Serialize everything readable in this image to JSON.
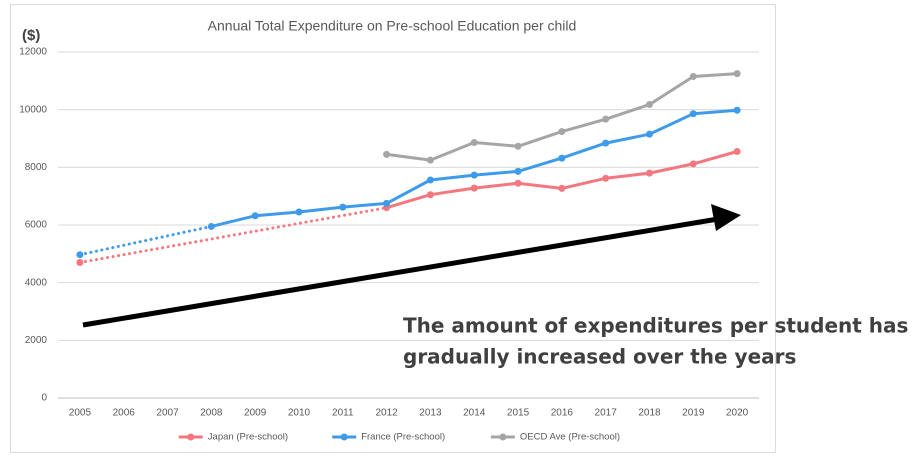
{
  "chart_data": {
    "type": "line",
    "title": "Annual Total Expenditure on Pre-school Education per child",
    "y_label": "($)",
    "categories": [
      "2005",
      "2006",
      "2007",
      "2008",
      "2009",
      "2010",
      "2011",
      "2012",
      "2013",
      "2014",
      "2015",
      "2016",
      "2017",
      "2018",
      "2019",
      "2020"
    ],
    "series": [
      {
        "name": "Japan (Pre-school)",
        "color": "#f4777f",
        "values": [
          4700,
          null,
          null,
          null,
          null,
          null,
          null,
          6600,
          7050,
          7280,
          7450,
          7270,
          7620,
          7800,
          8120,
          8550
        ]
      },
      {
        "name": "France (Pre-school)",
        "color": "#3d9be9",
        "values": [
          4970,
          null,
          null,
          5950,
          6320,
          6450,
          6620,
          6750,
          7560,
          7730,
          7860,
          8320,
          8840,
          9150,
          9860,
          9980
        ]
      },
      {
        "name": "OECD Ave (Pre-school)",
        "color": "#a5a5a5",
        "values": [
          null,
          null,
          null,
          null,
          null,
          null,
          null,
          8450,
          8250,
          8860,
          8730,
          9240,
          9670,
          10180,
          11150,
          11250
        ]
      }
    ],
    "ylim": [
      0,
      12000
    ],
    "yticks": [
      0,
      2000,
      4000,
      6000,
      8000,
      10000,
      12000
    ],
    "grid": true,
    "legend": "bottom",
    "annotation_lines": [
      "The amount of expenditures per student has",
      "gradually increased over the years"
    ]
  }
}
